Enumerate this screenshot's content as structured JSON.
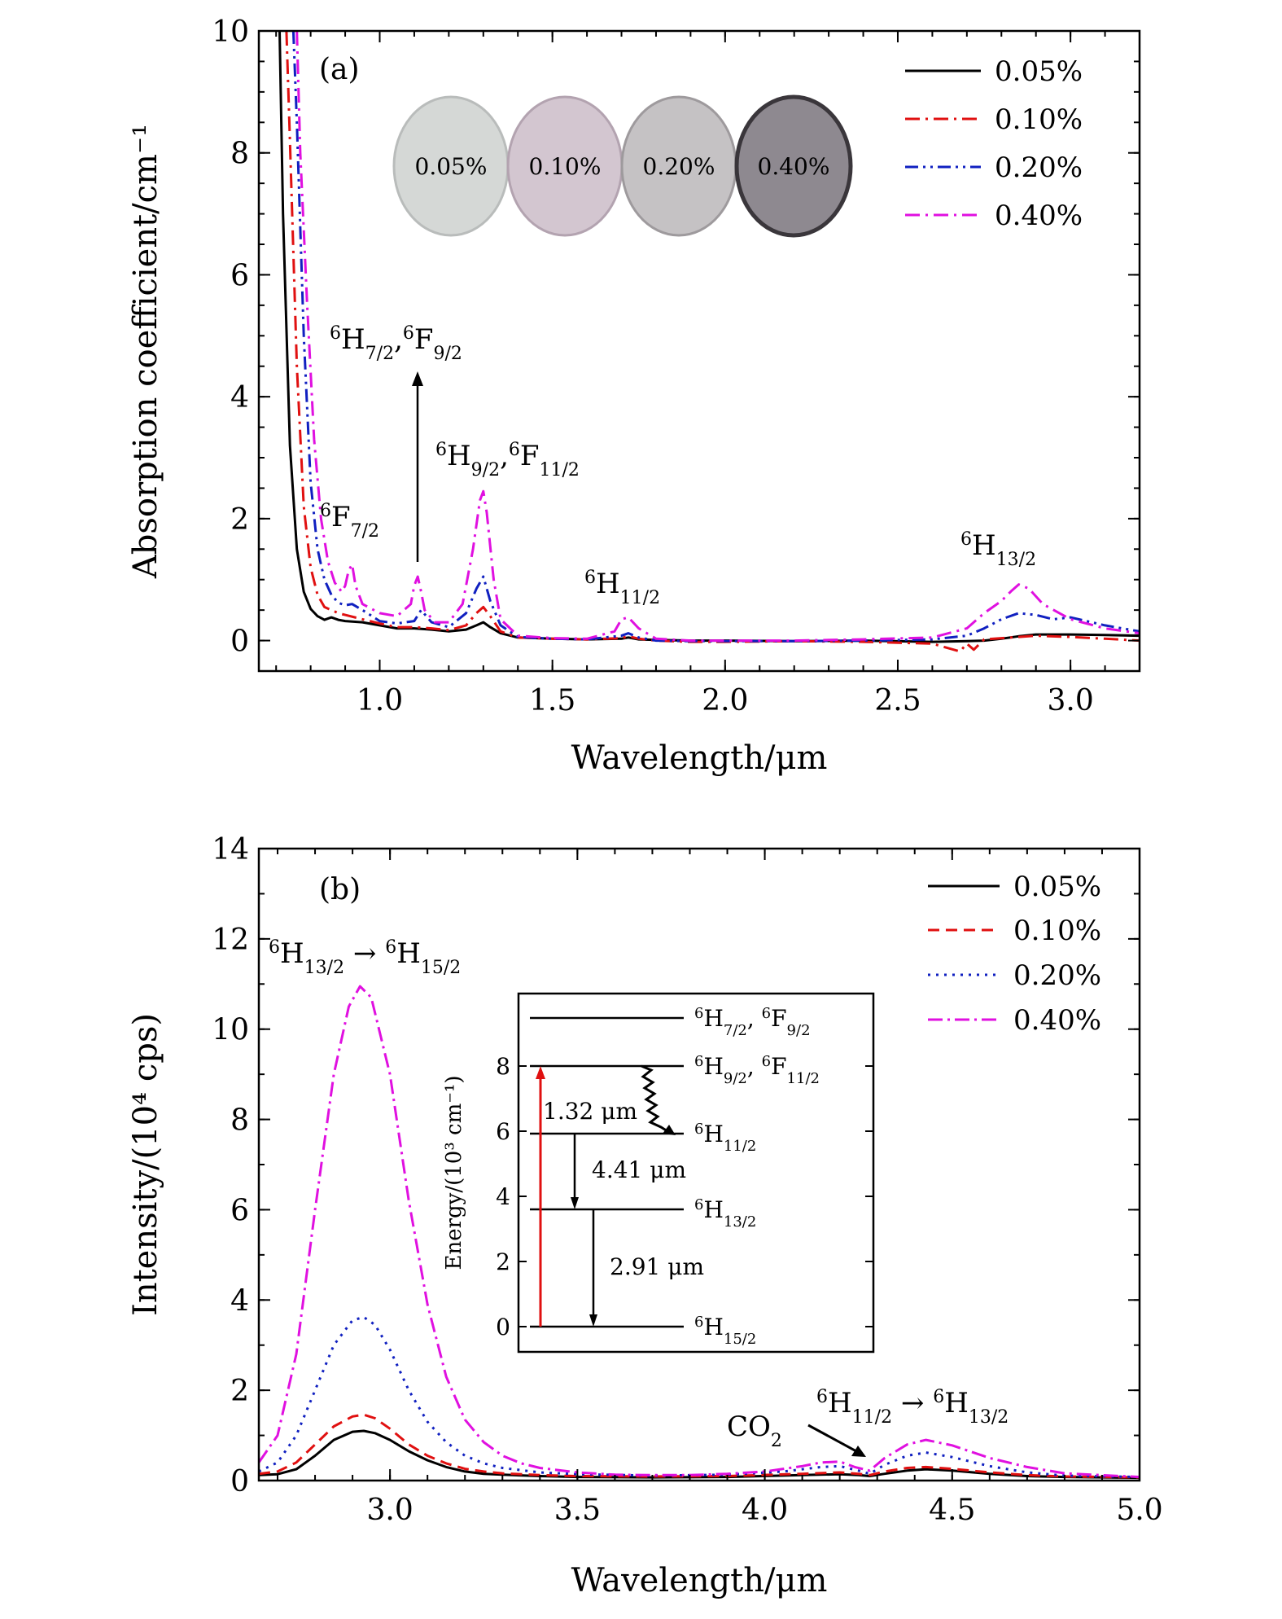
{
  "chart_data": [
    {
      "panel": "(a)",
      "type": "line",
      "xlabel": "Wavelength/μm",
      "ylabel": "Absorption coefficient/cm⁻¹",
      "xlim": [
        0.65,
        3.2
      ],
      "ylim": [
        -0.5,
        10
      ],
      "xticks": [
        "1.0",
        "1.5",
        "2.0",
        "2.5",
        "3.0"
      ],
      "yticks": [
        "0",
        "2",
        "4",
        "6",
        "8",
        "10"
      ],
      "legend": [
        "0.05%",
        "0.10%",
        "0.20%",
        "0.40%"
      ],
      "photo_labels": [
        "0.05%",
        "0.10%",
        "0.20%",
        "0.40%"
      ],
      "annotations": {
        "h72f92": {
          "a": "H",
          "b": "7/2",
          "c": "F",
          "d": "9/2"
        },
        "h92f112": {
          "a": "H",
          "b": "9/2",
          "c": "F",
          "d": "11/2"
        },
        "f72": {
          "a": "F",
          "b": "7/2"
        },
        "h112": {
          "a": "H",
          "b": "11/2"
        },
        "h132": {
          "a": "H",
          "b": "13/2"
        },
        "sup": "6"
      },
      "series": [
        {
          "name": "0.05%",
          "color": "#000000",
          "dash": "none",
          "x": [
            0.71,
            0.72,
            0.74,
            0.76,
            0.78,
            0.8,
            0.82,
            0.84,
            0.86,
            0.88,
            0.9,
            0.95,
            1.0,
            1.05,
            1.1,
            1.15,
            1.2,
            1.25,
            1.28,
            1.3,
            1.32,
            1.35,
            1.4,
            1.5,
            1.6,
            1.7,
            1.72,
            1.75,
            1.8,
            1.9,
            2.0,
            2.2,
            2.4,
            2.6,
            2.7,
            2.75,
            2.8,
            2.85,
            2.9,
            3.0,
            3.1,
            3.2
          ],
          "y": [
            10,
            7.0,
            3.2,
            1.5,
            0.8,
            0.52,
            0.4,
            0.34,
            0.38,
            0.34,
            0.32,
            0.3,
            0.25,
            0.2,
            0.2,
            0.18,
            0.15,
            0.18,
            0.25,
            0.3,
            0.22,
            0.12,
            0.05,
            0.03,
            0.02,
            0.03,
            0.05,
            0.02,
            0.01,
            0.0,
            0.0,
            -0.01,
            0.0,
            -0.02,
            -0.01,
            0.0,
            0.03,
            0.07,
            0.1,
            0.1,
            0.09,
            0.08
          ]
        },
        {
          "name": "0.10%",
          "color": "#e01010",
          "dash": "18 7 3 7",
          "x": [
            0.73,
            0.74,
            0.76,
            0.78,
            0.8,
            0.82,
            0.84,
            0.86,
            0.88,
            0.9,
            0.95,
            1.0,
            1.05,
            1.1,
            1.15,
            1.2,
            1.25,
            1.28,
            1.3,
            1.32,
            1.35,
            1.4,
            1.5,
            1.6,
            1.7,
            1.72,
            1.75,
            1.8,
            1.9,
            2.0,
            2.2,
            2.4,
            2.6,
            2.68,
            2.7,
            2.72,
            2.75,
            2.8,
            2.85,
            2.9,
            3.0,
            3.1,
            3.2
          ],
          "y": [
            10,
            8.2,
            4.5,
            2.2,
            1.2,
            0.75,
            0.55,
            0.5,
            0.45,
            0.42,
            0.35,
            0.28,
            0.22,
            0.22,
            0.2,
            0.17,
            0.25,
            0.45,
            0.55,
            0.4,
            0.15,
            0.05,
            0.03,
            0.02,
            0.04,
            0.07,
            0.03,
            0.0,
            -0.02,
            -0.02,
            -0.01,
            -0.02,
            -0.05,
            -0.18,
            -0.05,
            -0.15,
            0.02,
            0.04,
            0.06,
            0.08,
            0.06,
            0.03,
            0.0
          ]
        },
        {
          "name": "0.20%",
          "color": "#1020c0",
          "dash": "16 6 3 6 3 6",
          "x": [
            0.75,
            0.76,
            0.78,
            0.8,
            0.82,
            0.84,
            0.86,
            0.88,
            0.9,
            0.92,
            0.95,
            1.0,
            1.05,
            1.1,
            1.12,
            1.15,
            1.2,
            1.25,
            1.28,
            1.3,
            1.32,
            1.35,
            1.4,
            1.5,
            1.6,
            1.7,
            1.72,
            1.75,
            1.8,
            1.9,
            2.0,
            2.2,
            2.4,
            2.6,
            2.7,
            2.75,
            2.8,
            2.85,
            2.9,
            2.95,
            3.0,
            3.1,
            3.2
          ],
          "y": [
            10,
            8.5,
            5.0,
            2.6,
            1.5,
            1.0,
            0.75,
            0.62,
            0.58,
            0.6,
            0.5,
            0.32,
            0.28,
            0.32,
            0.5,
            0.3,
            0.22,
            0.45,
            0.85,
            1.05,
            0.65,
            0.25,
            0.06,
            0.03,
            0.02,
            0.08,
            0.12,
            0.05,
            0.0,
            -0.01,
            -0.01,
            -0.01,
            0.0,
            0.02,
            0.08,
            0.2,
            0.35,
            0.45,
            0.42,
            0.35,
            0.38,
            0.25,
            0.15
          ]
        },
        {
          "name": "0.40%",
          "color": "#e010e0",
          "dash": "18 7 3 7",
          "x": [
            0.76,
            0.77,
            0.79,
            0.81,
            0.83,
            0.85,
            0.87,
            0.89,
            0.9,
            0.91,
            0.92,
            0.93,
            0.95,
            1.0,
            1.05,
            1.09,
            1.1,
            1.11,
            1.12,
            1.13,
            1.16,
            1.2,
            1.24,
            1.27,
            1.29,
            1.3,
            1.31,
            1.33,
            1.35,
            1.4,
            1.5,
            1.6,
            1.68,
            1.7,
            1.72,
            1.75,
            1.8,
            1.9,
            2.0,
            2.2,
            2.4,
            2.6,
            2.7,
            2.75,
            2.8,
            2.83,
            2.85,
            2.88,
            2.92,
            3.0,
            3.1,
            3.2
          ],
          "y": [
            10,
            8.0,
            5.5,
            3.3,
            2.0,
            1.3,
            0.95,
            0.8,
            0.9,
            1.15,
            1.25,
            0.9,
            0.6,
            0.45,
            0.4,
            0.6,
            0.9,
            1.05,
            0.8,
            0.5,
            0.3,
            0.3,
            0.6,
            1.5,
            2.3,
            2.45,
            2.1,
            1.0,
            0.35,
            0.08,
            0.04,
            0.03,
            0.15,
            0.35,
            0.38,
            0.2,
            0.03,
            0.0,
            0.0,
            0.0,
            0.02,
            0.05,
            0.2,
            0.45,
            0.65,
            0.82,
            0.92,
            0.85,
            0.6,
            0.35,
            0.2,
            0.12
          ]
        }
      ]
    },
    {
      "panel": "(b)",
      "type": "line",
      "xlabel": "Wavelength/μm",
      "ylabel": "Intensity/(10⁴ cps)",
      "xlim": [
        2.65,
        5.0
      ],
      "ylim": [
        0,
        14
      ],
      "xticks": [
        "3.0",
        "3.5",
        "4.0",
        "4.5",
        "5.0"
      ],
      "yticks": [
        "0",
        "2",
        "4",
        "6",
        "8",
        "10",
        "12",
        "14"
      ],
      "legend": [
        "0.05%",
        "0.10%",
        "0.20%",
        "0.40%"
      ],
      "annotations": {
        "main_a": "H",
        "main_b": "13/2",
        "arrow": "→",
        "main_c": "H",
        "main_d": "15/2",
        "sec_a": "H",
        "sec_b": "11/2",
        "sec_c": "H",
        "sec_d": "13/2",
        "co2": "CO",
        "co2_sub": "2",
        "sup": "6"
      },
      "series": [
        {
          "name": "0.05%",
          "color": "#000000",
          "dash": "none",
          "x": [
            2.65,
            2.7,
            2.75,
            2.8,
            2.85,
            2.9,
            2.93,
            2.96,
            3.0,
            3.05,
            3.1,
            3.15,
            3.2,
            3.25,
            3.3,
            3.4,
            3.5,
            3.7,
            3.9,
            4.1,
            4.2,
            4.25,
            4.28,
            4.32,
            4.38,
            4.43,
            4.5,
            4.6,
            4.7,
            4.8,
            5.0
          ],
          "y": [
            0.12,
            0.14,
            0.25,
            0.55,
            0.9,
            1.08,
            1.1,
            1.05,
            0.9,
            0.65,
            0.45,
            0.3,
            0.2,
            0.15,
            0.13,
            0.1,
            0.08,
            0.07,
            0.08,
            0.12,
            0.14,
            0.12,
            0.1,
            0.15,
            0.22,
            0.25,
            0.22,
            0.15,
            0.1,
            0.08,
            0.06
          ]
        },
        {
          "name": "0.10%",
          "color": "#e01010",
          "dash": "14 8",
          "x": [
            2.65,
            2.7,
            2.75,
            2.8,
            2.85,
            2.9,
            2.93,
            2.96,
            3.0,
            3.05,
            3.1,
            3.15,
            3.2,
            3.25,
            3.3,
            3.4,
            3.5,
            3.7,
            3.9,
            4.1,
            4.2,
            4.25,
            4.28,
            4.32,
            4.38,
            4.43,
            4.5,
            4.6,
            4.7,
            4.8,
            5.0
          ],
          "y": [
            0.15,
            0.2,
            0.4,
            0.8,
            1.2,
            1.42,
            1.46,
            1.38,
            1.15,
            0.8,
            0.55,
            0.38,
            0.26,
            0.2,
            0.16,
            0.12,
            0.1,
            0.09,
            0.1,
            0.15,
            0.18,
            0.15,
            0.12,
            0.2,
            0.28,
            0.3,
            0.26,
            0.18,
            0.12,
            0.09,
            0.07
          ]
        },
        {
          "name": "0.20%",
          "color": "#1020c0",
          "dash": "3 7",
          "x": [
            2.65,
            2.7,
            2.75,
            2.8,
            2.85,
            2.9,
            2.93,
            2.96,
            3.0,
            3.05,
            3.1,
            3.15,
            3.2,
            3.25,
            3.3,
            3.4,
            3.5,
            3.7,
            3.9,
            4.05,
            4.15,
            4.2,
            4.25,
            4.28,
            4.32,
            4.38,
            4.43,
            4.5,
            4.6,
            4.7,
            4.8,
            5.0
          ],
          "y": [
            0.2,
            0.4,
            1.0,
            2.0,
            3.0,
            3.55,
            3.62,
            3.45,
            2.9,
            2.0,
            1.3,
            0.85,
            0.55,
            0.38,
            0.28,
            0.18,
            0.14,
            0.11,
            0.13,
            0.2,
            0.3,
            0.32,
            0.22,
            0.15,
            0.35,
            0.55,
            0.62,
            0.52,
            0.32,
            0.18,
            0.11,
            0.08
          ]
        },
        {
          "name": "0.40%",
          "color": "#e010e0",
          "dash": "18 6 3 6",
          "x": [
            2.65,
            2.7,
            2.75,
            2.8,
            2.85,
            2.89,
            2.92,
            2.95,
            3.0,
            3.05,
            3.1,
            3.15,
            3.2,
            3.25,
            3.3,
            3.35,
            3.4,
            3.5,
            3.6,
            3.7,
            3.8,
            3.9,
            4.0,
            4.1,
            4.15,
            4.2,
            4.24,
            4.28,
            4.32,
            4.38,
            4.43,
            4.5,
            4.6,
            4.7,
            4.8,
            5.0
          ],
          "y": [
            0.4,
            1.0,
            2.8,
            6.0,
            9.0,
            10.5,
            10.95,
            10.7,
            9.0,
            6.2,
            3.9,
            2.3,
            1.35,
            0.85,
            0.55,
            0.38,
            0.28,
            0.18,
            0.13,
            0.12,
            0.12,
            0.15,
            0.2,
            0.32,
            0.4,
            0.42,
            0.3,
            0.22,
            0.5,
            0.8,
            0.9,
            0.78,
            0.5,
            0.3,
            0.16,
            0.08
          ]
        }
      ]
    }
  ],
  "inset": {
    "ylabel": "Energy/(10³ cm⁻¹)",
    "yticks": [
      "0",
      "2",
      "4",
      "6",
      "8"
    ],
    "levels": [
      {
        "a": "H",
        "b": "7/2",
        "c": "F",
        "d": "9/2",
        "energy": 9.0
      },
      {
        "a": "H",
        "b": "9/2",
        "c": "F",
        "d": "11/2",
        "energy": 7.6
      },
      {
        "a": "H",
        "b": "11/2",
        "energy": 5.7
      },
      {
        "a": "H",
        "b": "13/2",
        "energy": 3.5
      },
      {
        "a": "H",
        "b": "15/2",
        "energy": 0.0
      }
    ],
    "sup": "6",
    "transitions": [
      "1.32 μm",
      "4.41 μm",
      "2.91 μm"
    ],
    "pump_color": "#e01010"
  }
}
